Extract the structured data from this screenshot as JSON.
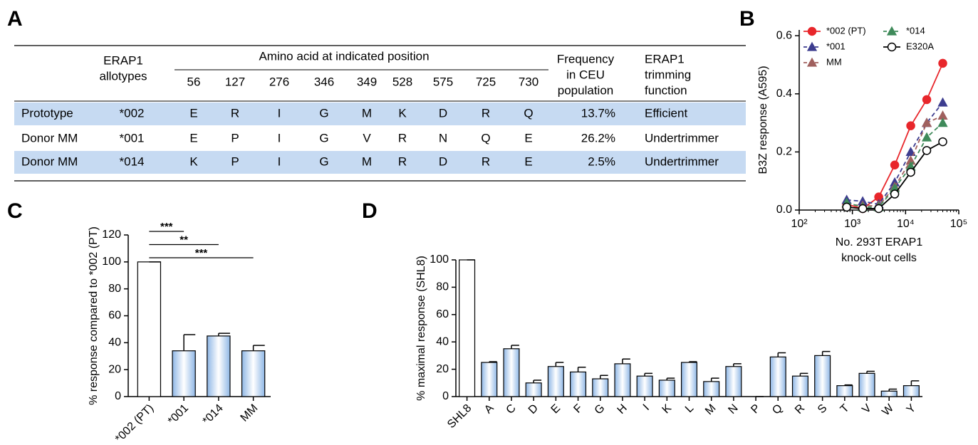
{
  "panel_labels": [
    "A",
    "B",
    "C",
    "D"
  ],
  "table": {
    "allotype_header": [
      "ERAP1",
      "allotypes"
    ],
    "position_header": "Amino acid at indicated position",
    "positions": [
      "56",
      "127",
      "276",
      "346",
      "349",
      "528",
      "575",
      "725",
      "730"
    ],
    "frequency_header": [
      "Frequency",
      "in CEU",
      "population"
    ],
    "function_header": [
      "ERAP1",
      "trimming",
      "function"
    ],
    "rows": [
      [
        "Prototype",
        "*002",
        "E",
        "R",
        "I",
        "G",
        "M",
        "K",
        "D",
        "R",
        "Q",
        "13.7%",
        "Efficient"
      ],
      [
        "Donor MM",
        "*001",
        "E",
        "P",
        "I",
        "G",
        "V",
        "R",
        "N",
        "Q",
        "E",
        "26.2%",
        "Undertrimmer"
      ],
      [
        "Donor MM",
        "*014",
        "K",
        "P",
        "I",
        "G",
        "M",
        "R",
        "D",
        "R",
        "E",
        "2.5%",
        "Undertrimmer"
      ]
    ]
  },
  "chart_data": [
    {
      "type": "line",
      "xscale": "log",
      "x": [
        781,
        1563,
        3125,
        6250,
        12500,
        25000,
        50000
      ],
      "xlim": [
        100,
        100000
      ],
      "xticks": [
        {
          "value": 100,
          "label": "10²"
        },
        {
          "value": 1000,
          "label": "10³"
        },
        {
          "value": 10000,
          "label": "10⁴"
        },
        {
          "value": 100000,
          "label": "10⁵"
        }
      ],
      "ylim": [
        0,
        0.62
      ],
      "yticks": [
        {
          "value": 0,
          "label": "0.0"
        },
        0.2,
        0.4,
        0.6
      ],
      "xlabel": [
        "No. 293T ERAP1",
        "knock-out cells"
      ],
      "ylabel": "B3Z response (A595)",
      "series": [
        {
          "name": "*002 (PT)",
          "color": "#e8262b",
          "marker": "circle",
          "filled": true,
          "dashed": false,
          "values": [
            0.02,
            0.005,
            0.045,
            0.155,
            0.29,
            0.38,
            0.505
          ]
        },
        {
          "name": "*001",
          "color": "#3d3d8f",
          "marker": "triangle",
          "filled": true,
          "dashed": true,
          "values": [
            0.035,
            0.03,
            0.02,
            0.095,
            0.2,
            0.3,
            0.37
          ]
        },
        {
          "name": "MM",
          "color": "#a0605e",
          "marker": "triangle",
          "filled": true,
          "dashed": true,
          "values": [
            0.02,
            0.015,
            0.015,
            0.08,
            0.17,
            0.3,
            0.325
          ]
        },
        {
          "name": "*014",
          "color": "#3f8a5a",
          "marker": "triangle",
          "filled": true,
          "dashed": true,
          "values": [
            0.025,
            0.01,
            0.01,
            0.075,
            0.15,
            0.25,
            0.3
          ]
        },
        {
          "name": "E320A",
          "color": "#000000",
          "marker": "circle",
          "filled": false,
          "dashed": false,
          "values": [
            0.01,
            0.005,
            0.005,
            0.055,
            0.13,
            0.205,
            0.235
          ]
        }
      ]
    },
    {
      "type": "bar",
      "categories": [
        "*002 (PT)",
        "*001",
        "*014",
        "MM"
      ],
      "values": [
        100,
        34,
        45,
        34
      ],
      "errors": [
        0,
        12,
        2,
        4
      ],
      "colors": [
        "#ffffff",
        "#8fb7e6",
        "#8fb7e6",
        "#8fb7e6"
      ],
      "ylim": [
        0,
        120
      ],
      "yticks": [
        0,
        20,
        40,
        60,
        80,
        100,
        120
      ],
      "ylabel": "% response compared to *002 (PT)",
      "significance_labels": [
        null,
        "***",
        "**",
        "***"
      ]
    },
    {
      "type": "bar",
      "categories": [
        "SHL8",
        "A",
        "C",
        "D",
        "E",
        "F",
        "G",
        "H",
        "I",
        "K",
        "L",
        "M",
        "N",
        "P",
        "Q",
        "R",
        "S",
        "T",
        "V",
        "W",
        "Y"
      ],
      "values": [
        100,
        25,
        35,
        10,
        22,
        18,
        13,
        24,
        15,
        12,
        25,
        11,
        22,
        0,
        29,
        15,
        30,
        8,
        17,
        4,
        8
      ],
      "errors": [
        0,
        0.5,
        2.5,
        2,
        3,
        3.5,
        2.5,
        3.5,
        2,
        1.5,
        0.5,
        2.5,
        2,
        0,
        3,
        2,
        3,
        0.5,
        1.5,
        1.5,
        3.5
      ],
      "colors": [
        "#ffffff",
        "#8fb7e6",
        "#8fb7e6",
        "#8fb7e6",
        "#8fb7e6",
        "#8fb7e6",
        "#8fb7e6",
        "#8fb7e6",
        "#8fb7e6",
        "#8fb7e6",
        "#8fb7e6",
        "#8fb7e6",
        "#8fb7e6",
        "#8fb7e6",
        "#8fb7e6",
        "#8fb7e6",
        "#8fb7e6",
        "#8fb7e6",
        "#8fb7e6",
        "#8fb7e6",
        "#8fb7e6"
      ],
      "ylim": [
        0,
        100
      ],
      "yticks": [
        0,
        20,
        40,
        60,
        80,
        100
      ],
      "ylabel": "% maximal response (SHL8)"
    }
  ]
}
